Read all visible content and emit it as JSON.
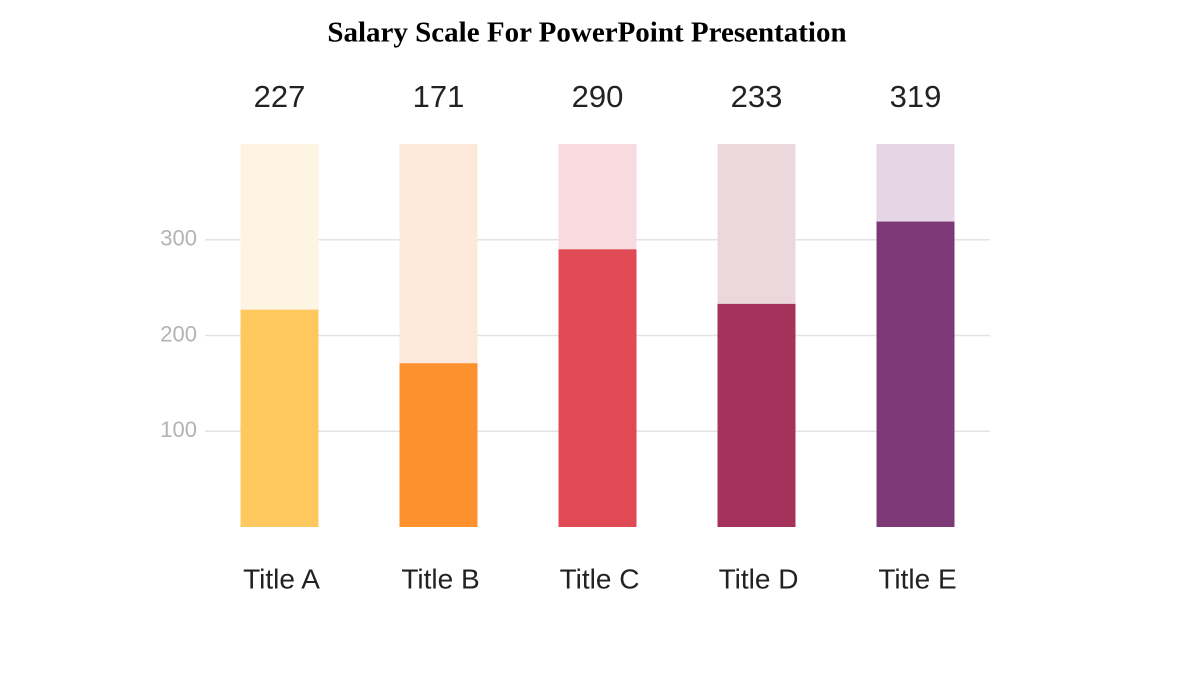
{
  "chart_data": {
    "type": "bar",
    "title": "Salary Scale For PowerPoint Presentation",
    "categories": [
      "Title A",
      "Title B",
      "Title C",
      "Title D",
      "Title E"
    ],
    "values": [
      227,
      171,
      290,
      233,
      319
    ],
    "colors": [
      "#fdc85d",
      "#fd912e",
      "#df4a55",
      "#a4325a",
      "#7d3876"
    ],
    "track_colors": [
      "#fef4e3",
      "#fde8d9",
      "#f7dbde",
      "#ecd7dd",
      "#e6d6e5"
    ],
    "ylim": [
      0,
      400
    ],
    "yticks": [
      100,
      200,
      300
    ],
    "grid": true
  }
}
